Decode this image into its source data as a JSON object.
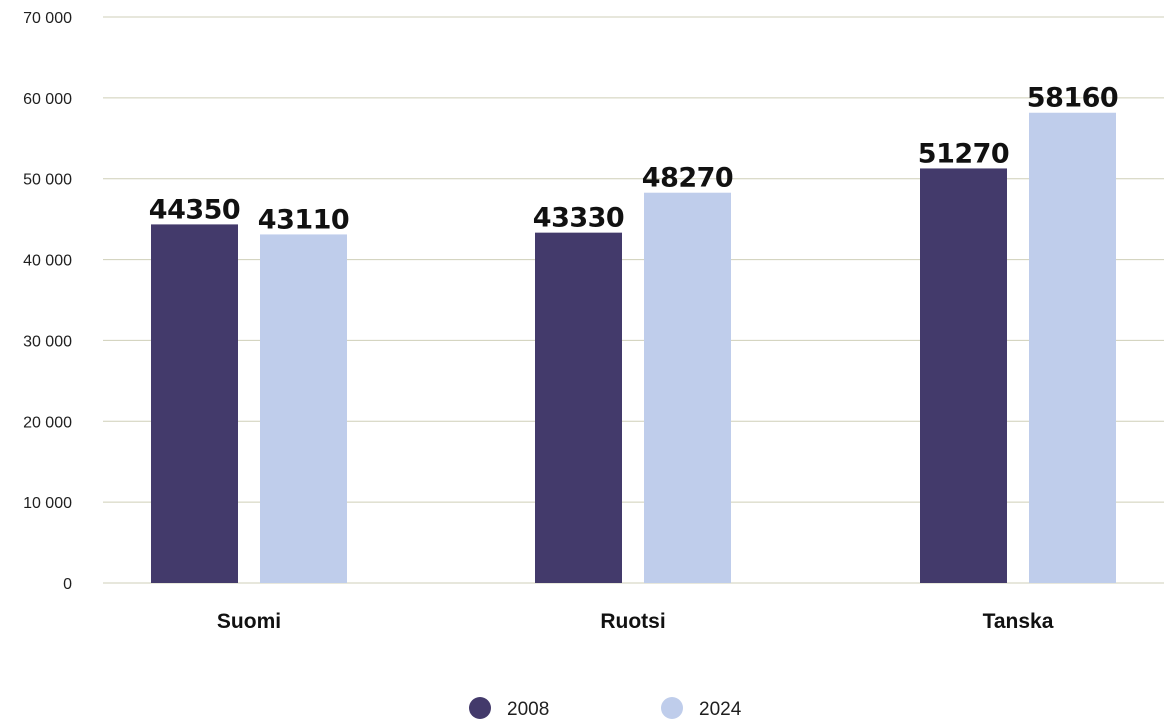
{
  "chart_data": {
    "type": "bar",
    "categories": [
      "Suomi",
      "Ruotsi",
      "Tanska"
    ],
    "series": [
      {
        "name": "2008",
        "values": [
          44350,
          43330,
          51270
        ],
        "color": "#433a6b"
      },
      {
        "name": "2024",
        "values": [
          43110,
          48270,
          58160
        ],
        "color": "#bfcdeb"
      }
    ],
    "title": "",
    "xlabel": "",
    "ylabel": "",
    "ylim": [
      0,
      70000
    ],
    "yticks": [
      0,
      10000,
      20000,
      30000,
      40000,
      50000,
      60000,
      70000
    ],
    "ytick_labels": [
      "0",
      "10 000",
      "20 000",
      "30 000",
      "40 000",
      "50 000",
      "60 000",
      "70 000"
    ],
    "data_labels": true,
    "grid": true,
    "legend_position": "bottom-center"
  }
}
